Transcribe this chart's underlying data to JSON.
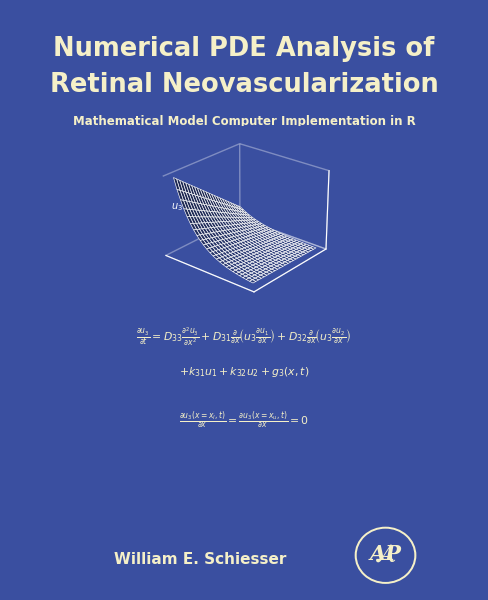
{
  "bg_color": "#3a4fa0",
  "title_line1": "Numerical PDE Analysis of",
  "title_line2": "Retinal Neovascularization",
  "subtitle": "Mathematical Model Computer Implementation in R",
  "author": "William E. Schiesser",
  "title_color": "#f5f0c8",
  "subtitle_color": "#f5f0c8",
  "author_color": "#f5f0c8",
  "eq_color": "#f5f0c8",
  "surface_color": "#ffffff",
  "surface_bg_color": "#3a4fa0",
  "surface_alpha": 0.85,
  "logo_color": "#f5f0c8",
  "surface_elev": 25,
  "surface_azim": -50,
  "surface_nx": 25,
  "surface_nt": 25,
  "title_fontsize": 18.5,
  "subtitle_fontsize": 8.5,
  "eq_fontsize": 7.8,
  "author_fontsize": 11
}
